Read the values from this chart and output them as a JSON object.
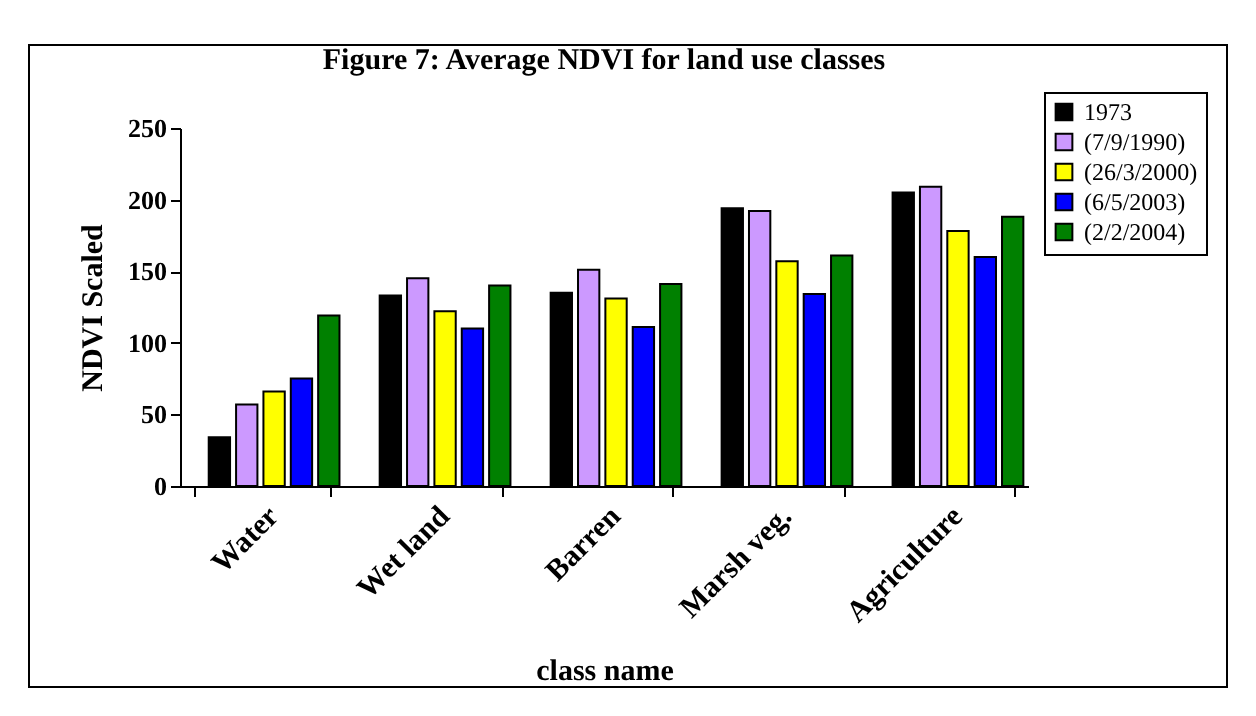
{
  "chart_data": {
    "type": "bar",
    "title": "Figure 7: Average NDVI for land use classes",
    "xlabel": "class name",
    "ylabel": "NDVI Scaled",
    "categories": [
      "Water",
      "Wet land",
      "Barren",
      "Marsh veg.",
      "Agriculture"
    ],
    "series": [
      {
        "name": "1973",
        "color": "#000000",
        "values": [
          34,
          133,
          135,
          194,
          205
        ]
      },
      {
        "name": "(7/9/1990)",
        "color": "#cc99ff",
        "values": [
          57,
          145,
          151,
          192,
          209
        ]
      },
      {
        "name": "(26/3/2000)",
        "color": "#ffff00",
        "values": [
          66,
          122,
          131,
          157,
          178
        ]
      },
      {
        "name": "(6/5/2003)",
        "color": "#0000ff",
        "values": [
          75,
          110,
          111,
          134,
          160
        ]
      },
      {
        "name": "(2/2/2004)",
        "color": "#008000",
        "values": [
          119,
          140,
          141,
          161,
          188
        ]
      }
    ],
    "ylim": [
      0,
      250
    ],
    "yticks": [
      0,
      50,
      100,
      150,
      200,
      250
    ],
    "grid": false,
    "legend": "top right"
  }
}
